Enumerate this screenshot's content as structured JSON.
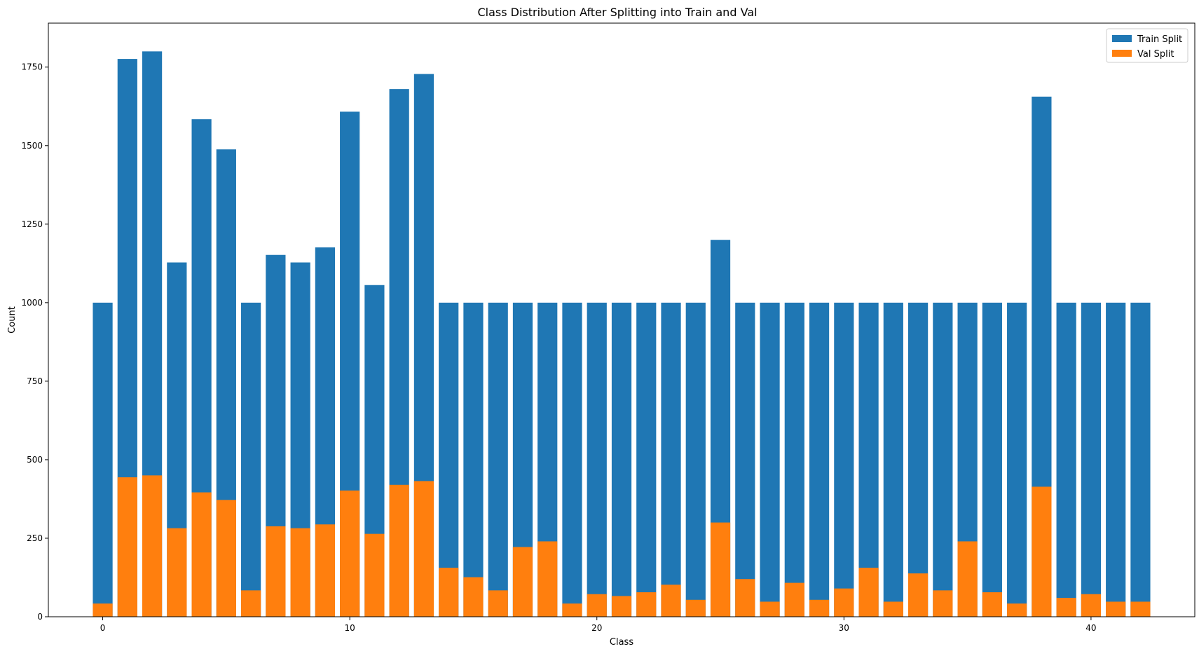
{
  "chart_data": {
    "type": "bar",
    "title": "Class Distribution After Splitting into Train and Val",
    "xlabel": "Class",
    "ylabel": "Count",
    "xlim": [
      -2.2,
      44.2
    ],
    "ylim": [
      0,
      1890
    ],
    "xticks": [
      0,
      10,
      20,
      30,
      40
    ],
    "yticks": [
      0,
      250,
      500,
      750,
      1000,
      1250,
      1500,
      1750
    ],
    "grid": false,
    "legend_position": "top-right",
    "categories": [
      0,
      1,
      2,
      3,
      4,
      5,
      6,
      7,
      8,
      9,
      10,
      11,
      12,
      13,
      14,
      15,
      16,
      17,
      18,
      19,
      20,
      21,
      22,
      23,
      24,
      25,
      26,
      27,
      28,
      29,
      30,
      31,
      32,
      33,
      34,
      35,
      36,
      37,
      38,
      39,
      40,
      41,
      42
    ],
    "series": [
      {
        "name": "Train Split",
        "color": "#1f77b4",
        "values": [
          1000,
          1776,
          1800,
          1128,
          1584,
          1488,
          1000,
          1152,
          1128,
          1176,
          1608,
          1056,
          1680,
          1728,
          1000,
          1000,
          1000,
          1000,
          1000,
          1000,
          1000,
          1000,
          1000,
          1000,
          1000,
          1200,
          1000,
          1000,
          1000,
          1000,
          1000,
          1000,
          1000,
          1000,
          1000,
          1000,
          1000,
          1000,
          1656,
          1000,
          1000,
          1000,
          1000
        ]
      },
      {
        "name": "Val Split",
        "color": "#ff7f0e",
        "values": [
          42,
          444,
          450,
          282,
          396,
          372,
          84,
          288,
          282,
          294,
          402,
          264,
          420,
          432,
          156,
          126,
          84,
          222,
          240,
          42,
          72,
          66,
          78,
          102,
          54,
          300,
          120,
          48,
          108,
          54,
          90,
          156,
          48,
          138,
          84,
          240,
          78,
          42,
          414,
          60,
          72,
          48,
          48
        ]
      }
    ]
  }
}
